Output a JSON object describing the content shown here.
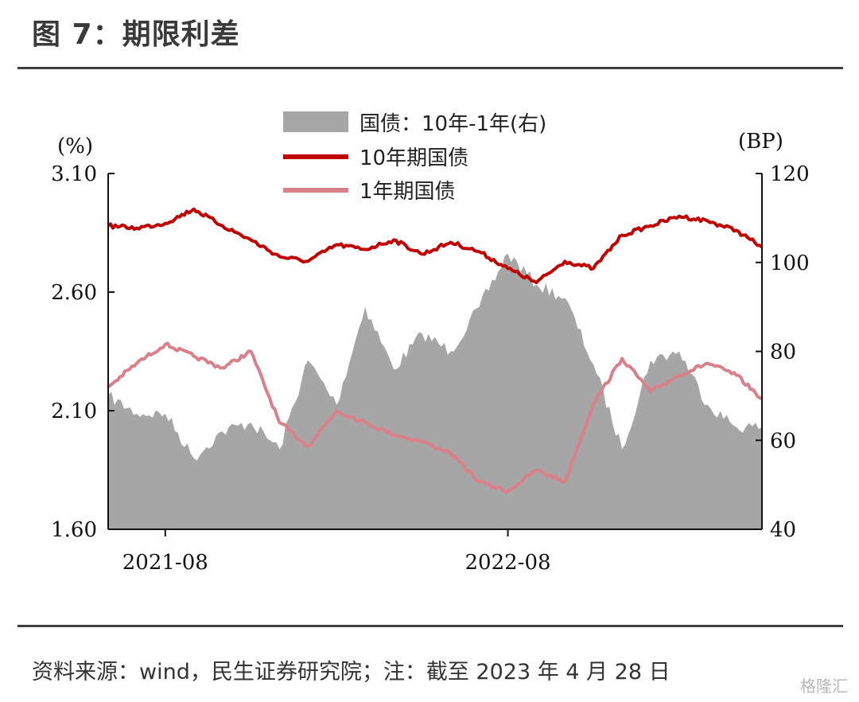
{
  "title": "图 7：期限利差",
  "source": "资料来源：wind，民生证券研究院；注：截至 2023 年 4 月 28 日",
  "watermark": "格隆汇",
  "chart_data": {
    "type": "area+line",
    "x_range": [
      "2021-06",
      "2023-04-28"
    ],
    "x_ticks": [
      "2021-08",
      "2022-08"
    ],
    "y_left": {
      "unit": "(%)",
      "ylim": [
        1.6,
        3.1
      ],
      "ticks": [
        "3.10",
        "2.60",
        "2.10",
        "1.60"
      ]
    },
    "y_right": {
      "unit": "(BP)",
      "ylim": [
        40,
        120
      ],
      "ticks": [
        "120",
        "100",
        "80",
        "60",
        "40"
      ]
    },
    "legend_placement": "top-center",
    "grid": false,
    "series": [
      {
        "name": "国债：10年-1年(右)",
        "type": "area",
        "axis": "right",
        "color": "#a6a6a6",
        "points": [
          [
            "2021-06",
            70
          ],
          [
            "2021-07",
            66
          ],
          [
            "2021-08",
            66
          ],
          [
            "2021-09",
            56
          ],
          [
            "2021-10",
            62
          ],
          [
            "2021-11",
            64
          ],
          [
            "2021-12",
            58
          ],
          [
            "2022-01",
            78
          ],
          [
            "2022-02",
            68
          ],
          [
            "2022-03",
            90
          ],
          [
            "2022-04",
            76
          ],
          [
            "2022-05",
            84
          ],
          [
            "2022-06",
            80
          ],
          [
            "2022-07",
            90
          ],
          [
            "2022-08",
            102
          ],
          [
            "2022-09",
            95
          ],
          [
            "2022-10",
            92
          ],
          [
            "2022-11",
            77
          ],
          [
            "2022-12",
            58
          ],
          [
            "2023-01",
            78
          ],
          [
            "2023-02",
            80
          ],
          [
            "2023-03",
            68
          ],
          [
            "2023-04",
            63
          ],
          [
            "2023-04-28",
            63
          ]
        ]
      },
      {
        "name": "10年期国债",
        "type": "line",
        "axis": "left",
        "color": "#c00000",
        "points": [
          [
            "2021-06",
            2.88
          ],
          [
            "2021-07",
            2.87
          ],
          [
            "2021-08",
            2.89
          ],
          [
            "2021-09",
            2.95
          ],
          [
            "2021-10",
            2.88
          ],
          [
            "2021-11",
            2.82
          ],
          [
            "2021-12",
            2.75
          ],
          [
            "2022-01",
            2.73
          ],
          [
            "2022-02",
            2.8
          ],
          [
            "2022-03",
            2.78
          ],
          [
            "2022-04",
            2.82
          ],
          [
            "2022-05",
            2.76
          ],
          [
            "2022-06",
            2.81
          ],
          [
            "2022-07",
            2.77
          ],
          [
            "2022-08",
            2.7
          ],
          [
            "2022-09",
            2.64
          ],
          [
            "2022-10",
            2.73
          ],
          [
            "2022-11",
            2.7
          ],
          [
            "2022-12",
            2.84
          ],
          [
            "2023-01",
            2.88
          ],
          [
            "2023-02",
            2.92
          ],
          [
            "2023-03",
            2.9
          ],
          [
            "2023-04",
            2.86
          ],
          [
            "2023-04-28",
            2.79
          ]
        ]
      },
      {
        "name": "1年期国债",
        "type": "line",
        "axis": "left",
        "color": "#d9808a",
        "points": [
          [
            "2021-06",
            2.2
          ],
          [
            "2021-07",
            2.3
          ],
          [
            "2021-08",
            2.38
          ],
          [
            "2021-09",
            2.33
          ],
          [
            "2021-10",
            2.28
          ],
          [
            "2021-11",
            2.35
          ],
          [
            "2021-12",
            2.05
          ],
          [
            "2022-01",
            1.95
          ],
          [
            "2022-02",
            2.1
          ],
          [
            "2022-03",
            2.05
          ],
          [
            "2022-04",
            2.0
          ],
          [
            "2022-05",
            1.97
          ],
          [
            "2022-06",
            1.92
          ],
          [
            "2022-07",
            1.8
          ],
          [
            "2022-08",
            1.76
          ],
          [
            "2022-09",
            1.85
          ],
          [
            "2022-10",
            1.8
          ],
          [
            "2022-11",
            2.13
          ],
          [
            "2022-12",
            2.32
          ],
          [
            "2023-01",
            2.18
          ],
          [
            "2023-02",
            2.25
          ],
          [
            "2023-03",
            2.3
          ],
          [
            "2023-04",
            2.25
          ],
          [
            "2023-04-28",
            2.15
          ]
        ]
      }
    ]
  }
}
